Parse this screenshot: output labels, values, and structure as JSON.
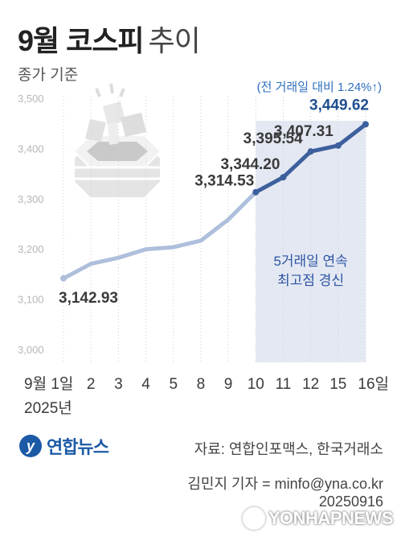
{
  "header": {
    "title_bold": "9월 코스피",
    "title_light": "추이",
    "subtitle": "종가 기준"
  },
  "chart_data": {
    "type": "line",
    "x_labels": [
      "9월 1일",
      "2",
      "3",
      "4",
      "5",
      "8",
      "9",
      "10",
      "11",
      "12",
      "15",
      "16일"
    ],
    "year_label": "2025년",
    "values": [
      3142.93,
      3172,
      3184,
      3201,
      3205,
      3218,
      3260,
      3314.53,
      3344.2,
      3395.54,
      3407.31,
      3449.62
    ],
    "data_labels": [
      {
        "index": 0,
        "text": "3,142.93"
      },
      {
        "index": 7,
        "text": "3,314.53"
      },
      {
        "index": 8,
        "text": "3,344.20"
      },
      {
        "index": 9,
        "text": "3,395.54"
      },
      {
        "index": 10,
        "text": "3,407.31"
      },
      {
        "index": 11,
        "text": "3,449.62"
      }
    ],
    "y_ticks": [
      3000,
      3100,
      3200,
      3300,
      3400,
      3500
    ],
    "y_tick_labels": [
      "3,000",
      "3,100",
      "3,200",
      "3,300",
      "3,400",
      "3,500"
    ],
    "ylim": [
      3000,
      3500
    ],
    "highlight": {
      "from_index": 7,
      "to_index": 11,
      "label_line1": "5거래일 연속",
      "label_line2": "최고점 경신"
    },
    "annotation": "(전 거래일 대비 1.24%↑)",
    "colors": {
      "light_line": "#aebfdc",
      "dark_line": "#3d5f9d",
      "highlight_fill": "#e3e8f3",
      "highlight_text": "#2f55a4",
      "annotation_text": "#2f6fbf",
      "last_label": "#1f4f8f"
    },
    "grid": "vertical-dotted"
  },
  "footer": {
    "logo_text": "연합뉴스",
    "source": "자료: 연합인포맥스, 한국거래소",
    "reporter": "김민지 기자 = minfo@yna.co.kr",
    "date": "20250916",
    "watermark": "YONHAPNEWS"
  }
}
